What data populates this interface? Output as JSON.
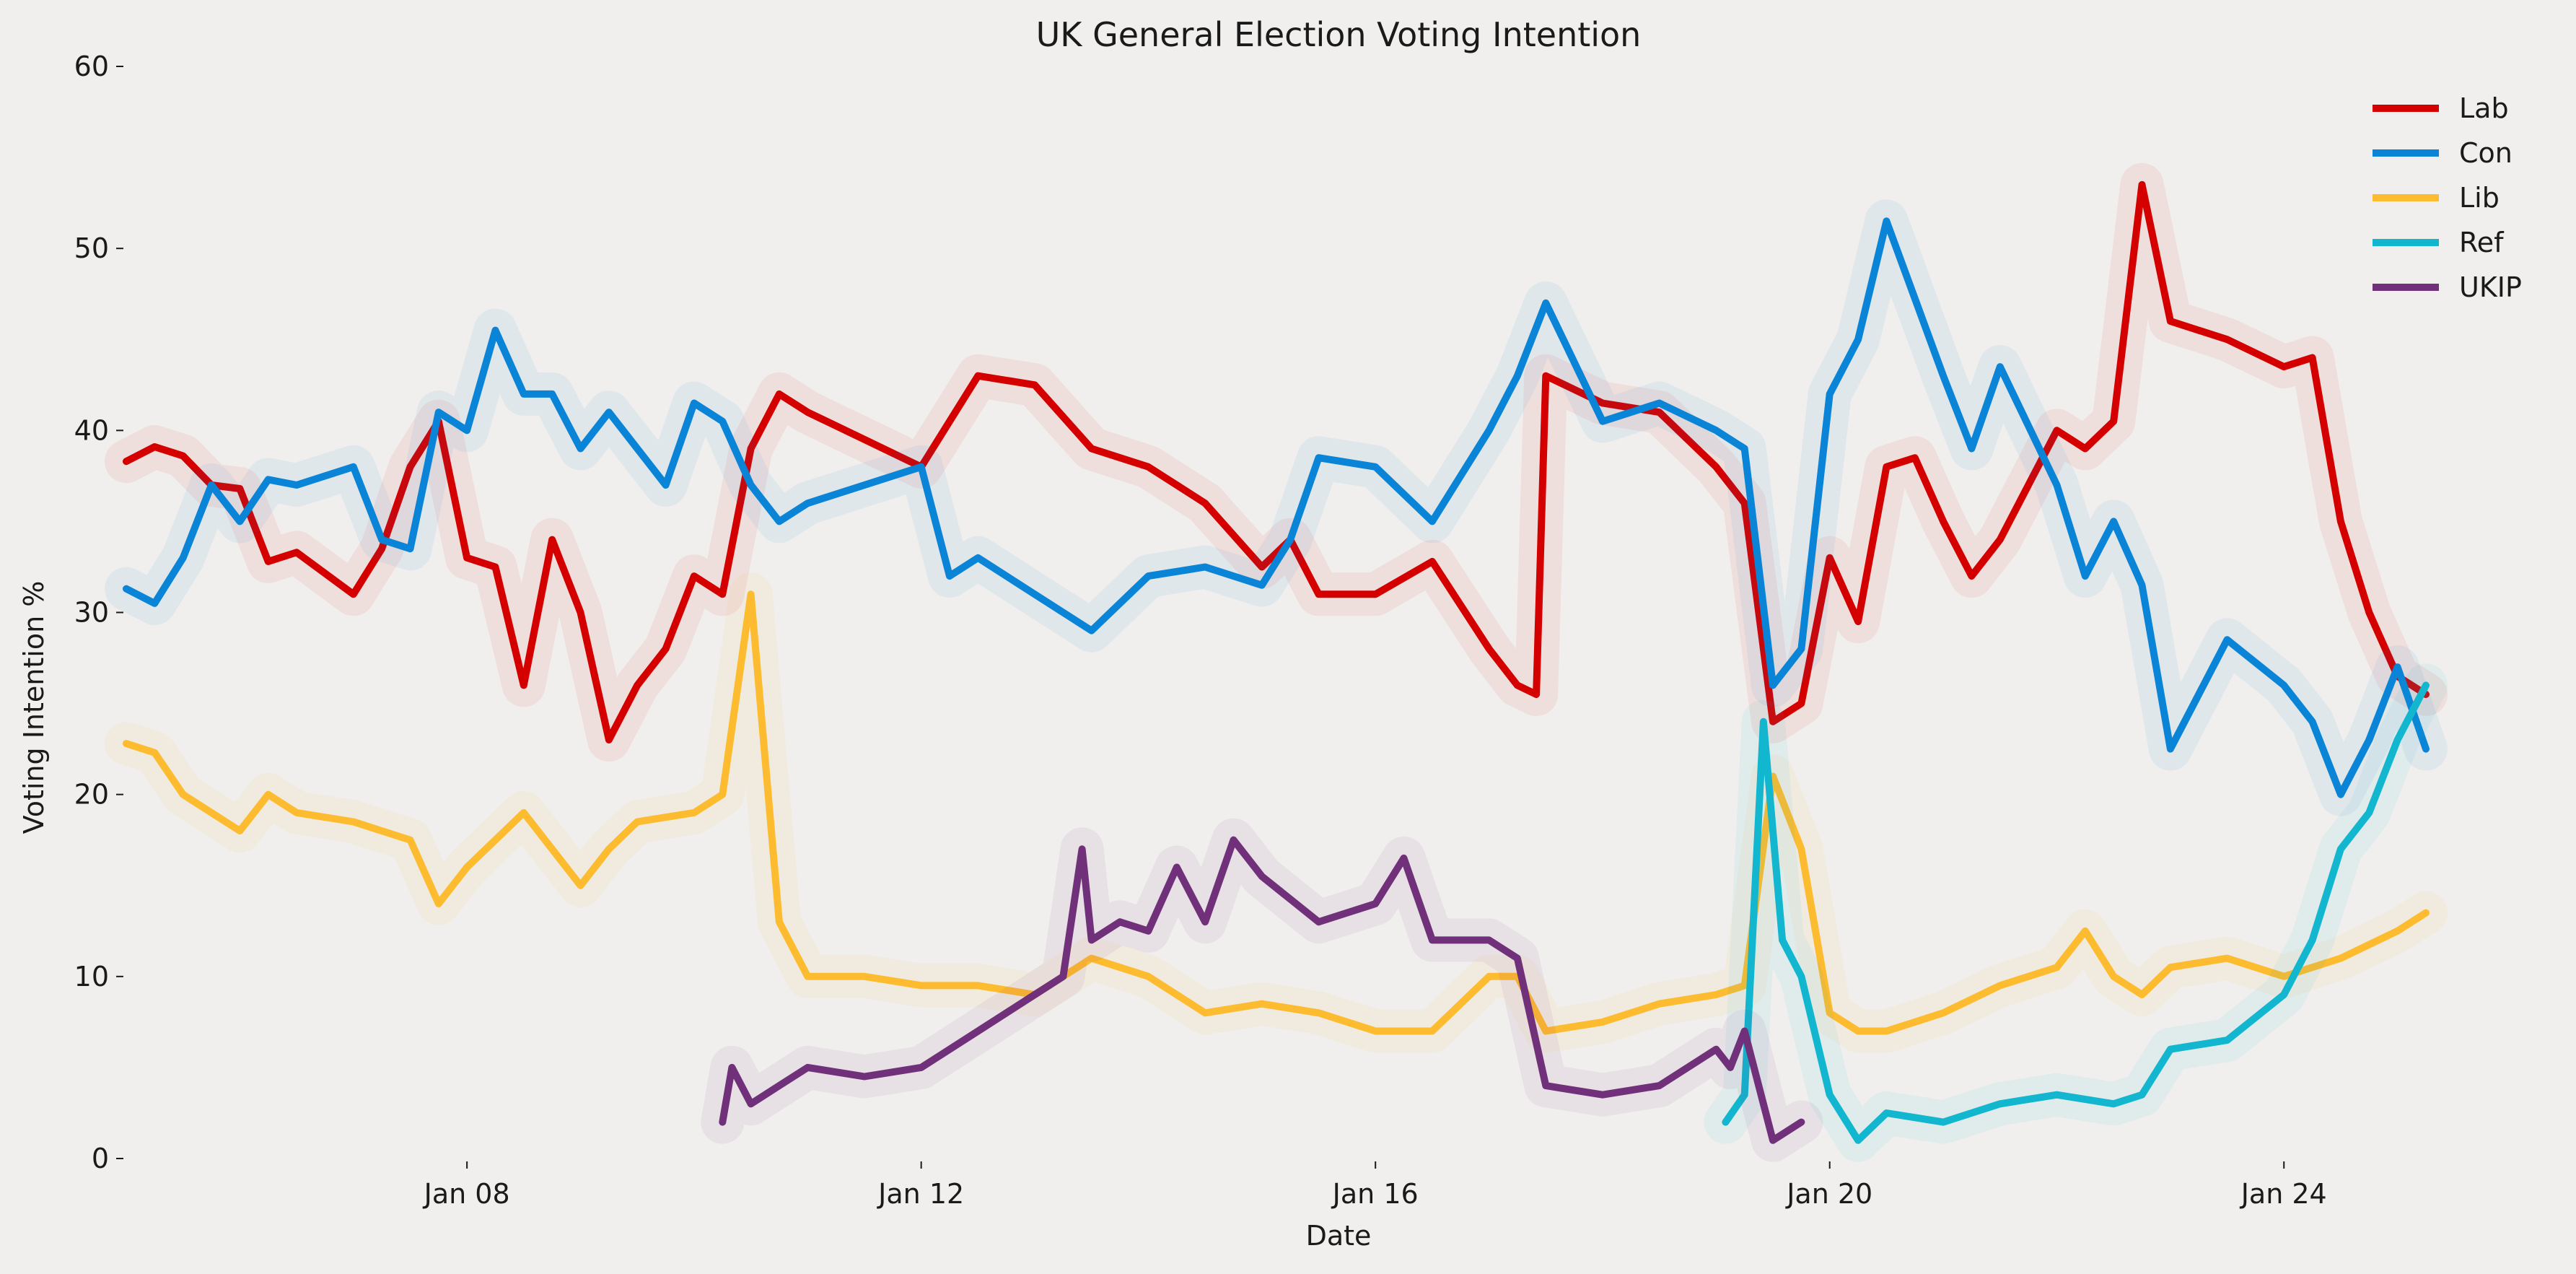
{
  "chart_data": {
    "type": "line",
    "title": "UK General Election Voting Intention",
    "xlabel": "Date",
    "ylabel": "Voting Intention %",
    "x_type": "date",
    "xlim": [
      "2024-01-05",
      "2024-01-26"
    ],
    "ylim": [
      0,
      60
    ],
    "yticks": [
      0,
      10,
      20,
      30,
      40,
      50,
      60
    ],
    "xticks": [
      {
        "date": "2024-01-08",
        "label": "Jan 08"
      },
      {
        "date": "2024-01-12",
        "label": "Jan 12"
      },
      {
        "date": "2024-01-16",
        "label": "Jan 16"
      },
      {
        "date": "2024-01-20",
        "label": "Jan 20"
      },
      {
        "date": "2024-01-24",
        "label": "Jan 24"
      }
    ],
    "grid": false,
    "legend_position": "top-right",
    "series": [
      {
        "name": "Lab",
        "color": "#d40000",
        "x": [
          "2024-01-05",
          "2024-01-05T06:00",
          "2024-01-05T12:00",
          "2024-01-05T18:00",
          "2024-01-06",
          "2024-01-06T06:00",
          "2024-01-06T12:00",
          "2024-01-07",
          "2024-01-07T06:00",
          "2024-01-07T12:00",
          "2024-01-07T18:00",
          "2024-01-08",
          "2024-01-08T06:00",
          "2024-01-08T12:00",
          "2024-01-08T18:00",
          "2024-01-09",
          "2024-01-09T06:00",
          "2024-01-09T12:00",
          "2024-01-09T18:00",
          "2024-01-10",
          "2024-01-10T06:00",
          "2024-01-10T12:00",
          "2024-01-10T18:00",
          "2024-01-11",
          "2024-01-11T12:00",
          "2024-01-12",
          "2024-01-12T12:00",
          "2024-01-13",
          "2024-01-13T12:00",
          "2024-01-14",
          "2024-01-14T12:00",
          "2024-01-15",
          "2024-01-15T06:00",
          "2024-01-15T12:00",
          "2024-01-16",
          "2024-01-16T12:00",
          "2024-01-17",
          "2024-01-17T06:00",
          "2024-01-17T10:00",
          "2024-01-17T12:00",
          "2024-01-18",
          "2024-01-18T12:00",
          "2024-01-19",
          "2024-01-19T06:00",
          "2024-01-19T12:00",
          "2024-01-19T18:00",
          "2024-01-20",
          "2024-01-20T06:00",
          "2024-01-20T12:00",
          "2024-01-20T18:00",
          "2024-01-21",
          "2024-01-21T06:00",
          "2024-01-21T12:00",
          "2024-01-21T18:00",
          "2024-01-22",
          "2024-01-22T06:00",
          "2024-01-22T12:00",
          "2024-01-22T18:00",
          "2024-01-23",
          "2024-01-23T12:00",
          "2024-01-24",
          "2024-01-24T06:00",
          "2024-01-24T12:00",
          "2024-01-24T18:00",
          "2024-01-25",
          "2024-01-25T06:00"
        ],
        "values": [
          38.3,
          39.1,
          38.6,
          37.0,
          36.8,
          32.8,
          33.3,
          31.0,
          33.5,
          38.0,
          40.5,
          33.0,
          32.5,
          26.0,
          34.0,
          30.0,
          23.0,
          26.0,
          28.0,
          32.0,
          31.0,
          39.0,
          42.0,
          41.0,
          39.5,
          38.0,
          43.0,
          42.5,
          39.0,
          38.0,
          36.0,
          32.5,
          34.0,
          31.0,
          31.0,
          32.8,
          28.0,
          26.0,
          25.5,
          43.0,
          41.5,
          41.0,
          38.0,
          36.0,
          24.0,
          25.0,
          33.0,
          29.5,
          38.0,
          38.5,
          35.0,
          32.0,
          34.0,
          37.0,
          40.0,
          39.0,
          40.5,
          53.5,
          46.0,
          45.0,
          43.5,
          44.0,
          35.0,
          30.0,
          26.5,
          25.5
        ]
      },
      {
        "name": "Con",
        "color": "#0a84d6",
        "x": [
          "2024-01-05",
          "2024-01-05T06:00",
          "2024-01-05T12:00",
          "2024-01-05T18:00",
          "2024-01-06",
          "2024-01-06T06:00",
          "2024-01-06T12:00",
          "2024-01-07",
          "2024-01-07T06:00",
          "2024-01-07T12:00",
          "2024-01-07T18:00",
          "2024-01-08",
          "2024-01-08T06:00",
          "2024-01-08T12:00",
          "2024-01-08T18:00",
          "2024-01-09",
          "2024-01-09T06:00",
          "2024-01-09T12:00",
          "2024-01-09T18:00",
          "2024-01-10",
          "2024-01-10T06:00",
          "2024-01-10T12:00",
          "2024-01-10T18:00",
          "2024-01-11",
          "2024-01-11T12:00",
          "2024-01-12",
          "2024-01-12T06:00",
          "2024-01-12T12:00",
          "2024-01-13",
          "2024-01-13T12:00",
          "2024-01-14",
          "2024-01-14T12:00",
          "2024-01-15",
          "2024-01-15T06:00",
          "2024-01-15T12:00",
          "2024-01-16",
          "2024-01-16T12:00",
          "2024-01-17",
          "2024-01-17T06:00",
          "2024-01-17T12:00",
          "2024-01-18",
          "2024-01-18T12:00",
          "2024-01-19",
          "2024-01-19T06:00",
          "2024-01-19T12:00",
          "2024-01-19T18:00",
          "2024-01-20",
          "2024-01-20T06:00",
          "2024-01-20T12:00",
          "2024-01-21",
          "2024-01-21T06:00",
          "2024-01-21T12:00",
          "2024-01-22",
          "2024-01-22T06:00",
          "2024-01-22T12:00",
          "2024-01-22T18:00",
          "2024-01-23",
          "2024-01-23T12:00",
          "2024-01-24",
          "2024-01-24T06:00",
          "2024-01-24T12:00",
          "2024-01-24T18:00",
          "2024-01-25",
          "2024-01-25T06:00"
        ],
        "values": [
          31.3,
          30.5,
          33.0,
          37.0,
          35.0,
          37.3,
          37.0,
          38.0,
          34.0,
          33.5,
          41.0,
          40.0,
          45.5,
          42.0,
          42.0,
          39.0,
          41.0,
          39.0,
          37.0,
          41.5,
          40.5,
          37.0,
          35.0,
          36.0,
          37.0,
          38.0,
          32.0,
          33.0,
          31.0,
          29.0,
          32.0,
          32.5,
          31.5,
          34.0,
          38.5,
          38.0,
          35.0,
          40.0,
          43.0,
          47.0,
          40.5,
          41.5,
          40.0,
          39.0,
          26.0,
          28.0,
          42.0,
          45.0,
          51.5,
          43.0,
          39.0,
          43.5,
          37.0,
          32.0,
          35.0,
          31.5,
          22.5,
          28.5,
          26.0,
          24.0,
          20.0,
          23.0,
          27.0,
          22.5
        ]
      },
      {
        "name": "Lib",
        "color": "#fdbb30",
        "x": [
          "2024-01-05",
          "2024-01-05T06:00",
          "2024-01-05T12:00",
          "2024-01-06",
          "2024-01-06T06:00",
          "2024-01-06T12:00",
          "2024-01-07",
          "2024-01-07T06:00",
          "2024-01-07T12:00",
          "2024-01-07T18:00",
          "2024-01-08",
          "2024-01-08T12:00",
          "2024-01-09",
          "2024-01-09T06:00",
          "2024-01-09T12:00",
          "2024-01-10",
          "2024-01-10T06:00",
          "2024-01-10T12:00",
          "2024-01-10T18:00",
          "2024-01-11",
          "2024-01-11T12:00",
          "2024-01-12",
          "2024-01-12T12:00",
          "2024-01-13",
          "2024-01-13T12:00",
          "2024-01-14",
          "2024-01-14T12:00",
          "2024-01-15",
          "2024-01-15T12:00",
          "2024-01-16",
          "2024-01-16T12:00",
          "2024-01-17",
          "2024-01-17T06:00",
          "2024-01-17T12:00",
          "2024-01-18",
          "2024-01-18T12:00",
          "2024-01-19",
          "2024-01-19T06:00",
          "2024-01-19T12:00",
          "2024-01-19T18:00",
          "2024-01-20",
          "2024-01-20T06:00",
          "2024-01-20T12:00",
          "2024-01-21",
          "2024-01-21T12:00",
          "2024-01-22",
          "2024-01-22T06:00",
          "2024-01-22T12:00",
          "2024-01-22T18:00",
          "2024-01-23",
          "2024-01-23T12:00",
          "2024-01-24",
          "2024-01-24T12:00",
          "2024-01-25",
          "2024-01-25T06:00"
        ],
        "values": [
          22.8,
          22.3,
          20.0,
          18.0,
          20.0,
          19.0,
          18.5,
          18.0,
          17.5,
          14.0,
          16.0,
          19.0,
          15.0,
          17.0,
          18.5,
          19.0,
          20.0,
          31.0,
          13.0,
          10.0,
          10.0,
          9.5,
          9.5,
          9.0,
          11.0,
          10.0,
          8.0,
          8.5,
          8.0,
          7.0,
          7.0,
          10.0,
          10.0,
          7.0,
          7.5,
          8.5,
          9.0,
          9.5,
          21.0,
          17.0,
          8.0,
          7.0,
          7.0,
          8.0,
          9.5,
          10.5,
          12.5,
          10.0,
          9.0,
          10.5,
          11.0,
          10.0,
          11.0,
          12.5,
          13.5
        ]
      },
      {
        "name": "Ref",
        "color": "#12b6cf",
        "x": [
          "2024-01-19T02:00",
          "2024-01-19T06:00",
          "2024-01-19T10:00",
          "2024-01-19T14:00",
          "2024-01-19T18:00",
          "2024-01-20",
          "2024-01-20T06:00",
          "2024-01-20T12:00",
          "2024-01-21",
          "2024-01-21T12:00",
          "2024-01-22",
          "2024-01-22T12:00",
          "2024-01-22T18:00",
          "2024-01-23",
          "2024-01-23T12:00",
          "2024-01-24",
          "2024-01-24T06:00",
          "2024-01-24T12:00",
          "2024-01-24T18:00",
          "2024-01-25",
          "2024-01-25T06:00"
        ],
        "values": [
          2.0,
          3.5,
          24.0,
          12.0,
          10.0,
          3.5,
          1.0,
          2.5,
          2.0,
          3.0,
          3.5,
          3.0,
          3.5,
          6.0,
          6.5,
          9.0,
          12.0,
          17.0,
          19.0,
          23.0,
          26.0
        ]
      },
      {
        "name": "UKIP",
        "color": "#70307a",
        "x": [
          "2024-01-10T06:00",
          "2024-01-10T08:00",
          "2024-01-10T12:00",
          "2024-01-10T18:00",
          "2024-01-11",
          "2024-01-11T12:00",
          "2024-01-12",
          "2024-01-12T12:00",
          "2024-01-13",
          "2024-01-13T06:00",
          "2024-01-13T10:00",
          "2024-01-13T12:00",
          "2024-01-13T18:00",
          "2024-01-14",
          "2024-01-14T06:00",
          "2024-01-14T12:00",
          "2024-01-14T18:00",
          "2024-01-15",
          "2024-01-15T12:00",
          "2024-01-16",
          "2024-01-16T06:00",
          "2024-01-16T12:00",
          "2024-01-17",
          "2024-01-17T06:00",
          "2024-01-17T12:00",
          "2024-01-18",
          "2024-01-18T12:00",
          "2024-01-19",
          "2024-01-19T03:00",
          "2024-01-19T06:00",
          "2024-01-19T12:00",
          "2024-01-19T18:00"
        ],
        "values": [
          2.0,
          5.0,
          3.0,
          4.0,
          5.0,
          4.5,
          5.0,
          7.0,
          9.0,
          10.0,
          17.0,
          12.0,
          13.0,
          12.5,
          16.0,
          13.0,
          17.5,
          15.5,
          13.0,
          14.0,
          16.5,
          12.0,
          12.0,
          11.0,
          4.0,
          3.5,
          4.0,
          6.0,
          5.0,
          7.0,
          1.0,
          2.0
        ]
      }
    ]
  }
}
